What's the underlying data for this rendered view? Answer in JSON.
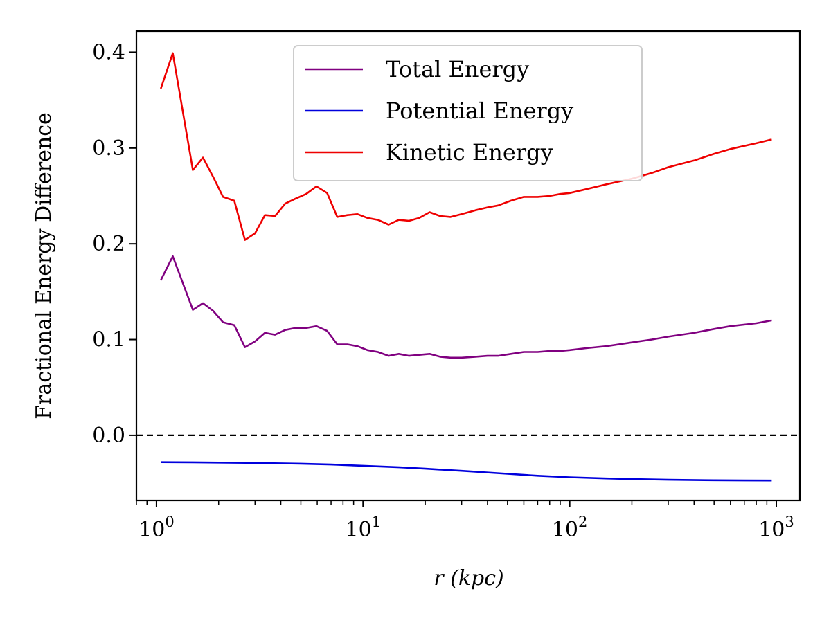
{
  "chart_data": {
    "type": "line",
    "xlabel": "r (kpc)",
    "ylabel": "Fractional Energy Difference",
    "xscale": "log",
    "xlim": [
      0.8,
      1300
    ],
    "ylim": [
      -0.068,
      0.422
    ],
    "grid": false,
    "legend_position": "top-center",
    "x_ticks": [
      {
        "value": 1,
        "base": "10",
        "exp": "0"
      },
      {
        "value": 10,
        "base": "10",
        "exp": "1"
      },
      {
        "value": 100,
        "base": "10",
        "exp": "2"
      },
      {
        "value": 1000,
        "base": "10",
        "exp": "3"
      }
    ],
    "y_ticks": [
      {
        "value": 0.0,
        "label": "0.0"
      },
      {
        "value": 0.1,
        "label": "0.1"
      },
      {
        "value": 0.2,
        "label": "0.2"
      },
      {
        "value": 0.3,
        "label": "0.3"
      },
      {
        "value": 0.4,
        "label": "0.4"
      }
    ],
    "reference_line": {
      "y": 0.0,
      "style": "dashed",
      "color": "#000000"
    },
    "series": [
      {
        "name": "Total Energy",
        "color": "#800080",
        "x": [
          1.05,
          1.2,
          1.5,
          1.68,
          1.88,
          2.1,
          2.38,
          2.68,
          3.0,
          3.35,
          3.75,
          4.2,
          4.7,
          5.3,
          5.95,
          6.7,
          7.5,
          8.4,
          9.4,
          10.5,
          11.8,
          13.3,
          14.9,
          16.7,
          18.7,
          21,
          23.6,
          26.5,
          30,
          35,
          40,
          45,
          52,
          60,
          70,
          80,
          90,
          100,
          120,
          150,
          200,
          250,
          300,
          400,
          500,
          600,
          800,
          950
        ],
        "y": [
          0.162,
          0.187,
          0.131,
          0.138,
          0.13,
          0.118,
          0.115,
          0.092,
          0.098,
          0.107,
          0.105,
          0.11,
          0.112,
          0.112,
          0.114,
          0.109,
          0.095,
          0.095,
          0.093,
          0.089,
          0.087,
          0.083,
          0.085,
          0.083,
          0.084,
          0.085,
          0.082,
          0.081,
          0.081,
          0.082,
          0.083,
          0.083,
          0.085,
          0.087,
          0.087,
          0.088,
          0.088,
          0.089,
          0.091,
          0.093,
          0.097,
          0.1,
          0.103,
          0.107,
          0.111,
          0.114,
          0.117,
          0.12
        ]
      },
      {
        "name": "Potential Energy",
        "color": "#0000dd",
        "x": [
          1.05,
          1.5,
          2,
          3,
          5,
          7,
          10,
          15,
          20,
          30,
          50,
          70,
          100,
          150,
          200,
          300,
          500,
          700,
          950
        ],
        "y": [
          -0.028,
          -0.0282,
          -0.0285,
          -0.0288,
          -0.0296,
          -0.0305,
          -0.0318,
          -0.0334,
          -0.0348,
          -0.0371,
          -0.0402,
          -0.0422,
          -0.0438,
          -0.045,
          -0.0457,
          -0.0464,
          -0.0469,
          -0.0471,
          -0.0472
        ]
      },
      {
        "name": "Kinetic Energy",
        "color": "#ee0000",
        "x": [
          1.05,
          1.2,
          1.5,
          1.68,
          1.88,
          2.1,
          2.38,
          2.68,
          3.0,
          3.35,
          3.75,
          4.2,
          4.7,
          5.3,
          5.95,
          6.7,
          7.5,
          8.4,
          9.4,
          10.5,
          11.8,
          13.3,
          14.9,
          16.7,
          18.7,
          21,
          23.6,
          26.5,
          30,
          35,
          40,
          45,
          52,
          60,
          70,
          80,
          90,
          100,
          120,
          150,
          200,
          250,
          300,
          400,
          500,
          600,
          800,
          950
        ],
        "y": [
          0.362,
          0.399,
          0.277,
          0.29,
          0.27,
          0.249,
          0.245,
          0.204,
          0.211,
          0.23,
          0.229,
          0.242,
          0.247,
          0.252,
          0.26,
          0.253,
          0.228,
          0.23,
          0.231,
          0.227,
          0.225,
          0.22,
          0.225,
          0.224,
          0.227,
          0.233,
          0.229,
          0.228,
          0.231,
          0.235,
          0.238,
          0.24,
          0.245,
          0.249,
          0.249,
          0.25,
          0.252,
          0.253,
          0.257,
          0.262,
          0.268,
          0.274,
          0.28,
          0.287,
          0.294,
          0.299,
          0.305,
          0.309
        ]
      }
    ]
  }
}
